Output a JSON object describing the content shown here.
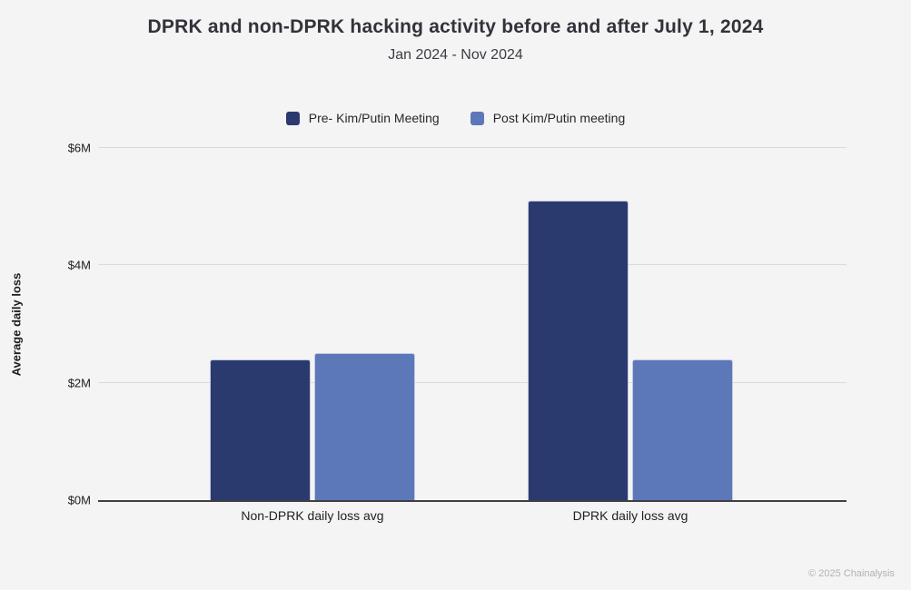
{
  "header": {
    "title": "DPRK and non-DPRK hacking activity before and after July 1, 2024",
    "subtitle": "Jan 2024 - Nov 2024"
  },
  "chart_data": {
    "type": "bar",
    "title": "DPRK and non-DPRK hacking activity before and after July 1, 2024",
    "subtitle": "Jan 2024 - Nov 2024",
    "categories": [
      "Non-DPRK daily loss avg",
      "DPRK daily loss avg"
    ],
    "series": [
      {
        "name": "Pre- Kim/Putin Meeting",
        "color": "#2b3a6e",
        "values": [
          2.4,
          5.1
        ]
      },
      {
        "name": "Post Kim/Putin meeting",
        "color": "#5d78b9",
        "values": [
          2.5,
          2.4
        ]
      }
    ],
    "xlabel": "",
    "ylabel": "Average daily loss",
    "ylim": [
      0,
      6
    ],
    "yticks": [
      {
        "label": "$0M",
        "value": 0
      },
      {
        "label": "$2M",
        "value": 2
      },
      {
        "label": "$4M",
        "value": 4
      },
      {
        "label": "$6M",
        "value": 6
      }
    ],
    "value_unit": "USD millions per day",
    "grid": true,
    "legend_position": "top"
  },
  "footer": {
    "copyright": "© 2025 Chainalysis"
  }
}
